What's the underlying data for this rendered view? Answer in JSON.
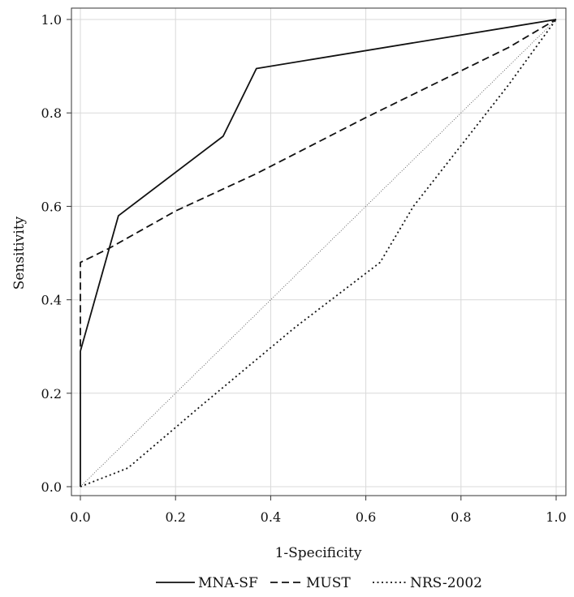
{
  "chart_data": {
    "type": "line",
    "title": "",
    "xlabel": "1-Specificity",
    "ylabel": "Sensitivity",
    "xlim": [
      0.0,
      1.0
    ],
    "ylim": [
      0.0,
      1.0
    ],
    "xticks": [
      "0.0",
      "0.2",
      "0.4",
      "0.6",
      "0.8",
      "1.0"
    ],
    "yticks": [
      "0.0",
      "0.2",
      "0.4",
      "0.6",
      "0.8",
      "1.0"
    ],
    "grid": true,
    "legend_position": "bottom",
    "series": [
      {
        "name": "MNA-SF",
        "style": "solid",
        "color": "#111111",
        "x": [
          0.0,
          0.0,
          0.08,
          0.3,
          0.37,
          1.0
        ],
        "y": [
          0.0,
          0.29,
          0.58,
          0.75,
          0.895,
          1.0
        ]
      },
      {
        "name": "MUST",
        "style": "dashed",
        "color": "#111111",
        "x": [
          0.0,
          0.0,
          0.06,
          0.13,
          0.2,
          0.37,
          0.6,
          0.8,
          0.9,
          1.0
        ],
        "y": [
          0.3,
          0.48,
          0.51,
          0.55,
          0.59,
          0.67,
          0.79,
          0.89,
          0.94,
          1.0
        ]
      },
      {
        "name": "NRS-2002",
        "style": "dotted",
        "color": "#111111",
        "x": [
          0.0,
          0.1,
          0.25,
          0.45,
          0.63,
          0.7,
          0.8,
          0.9,
          1.0
        ],
        "y": [
          0.0,
          0.04,
          0.17,
          0.34,
          0.48,
          0.6,
          0.73,
          0.86,
          1.0
        ]
      }
    ],
    "reference_line": {
      "style": "thin-dotted",
      "x": [
        0.0,
        1.0
      ],
      "y": [
        0.0,
        1.0
      ]
    }
  }
}
